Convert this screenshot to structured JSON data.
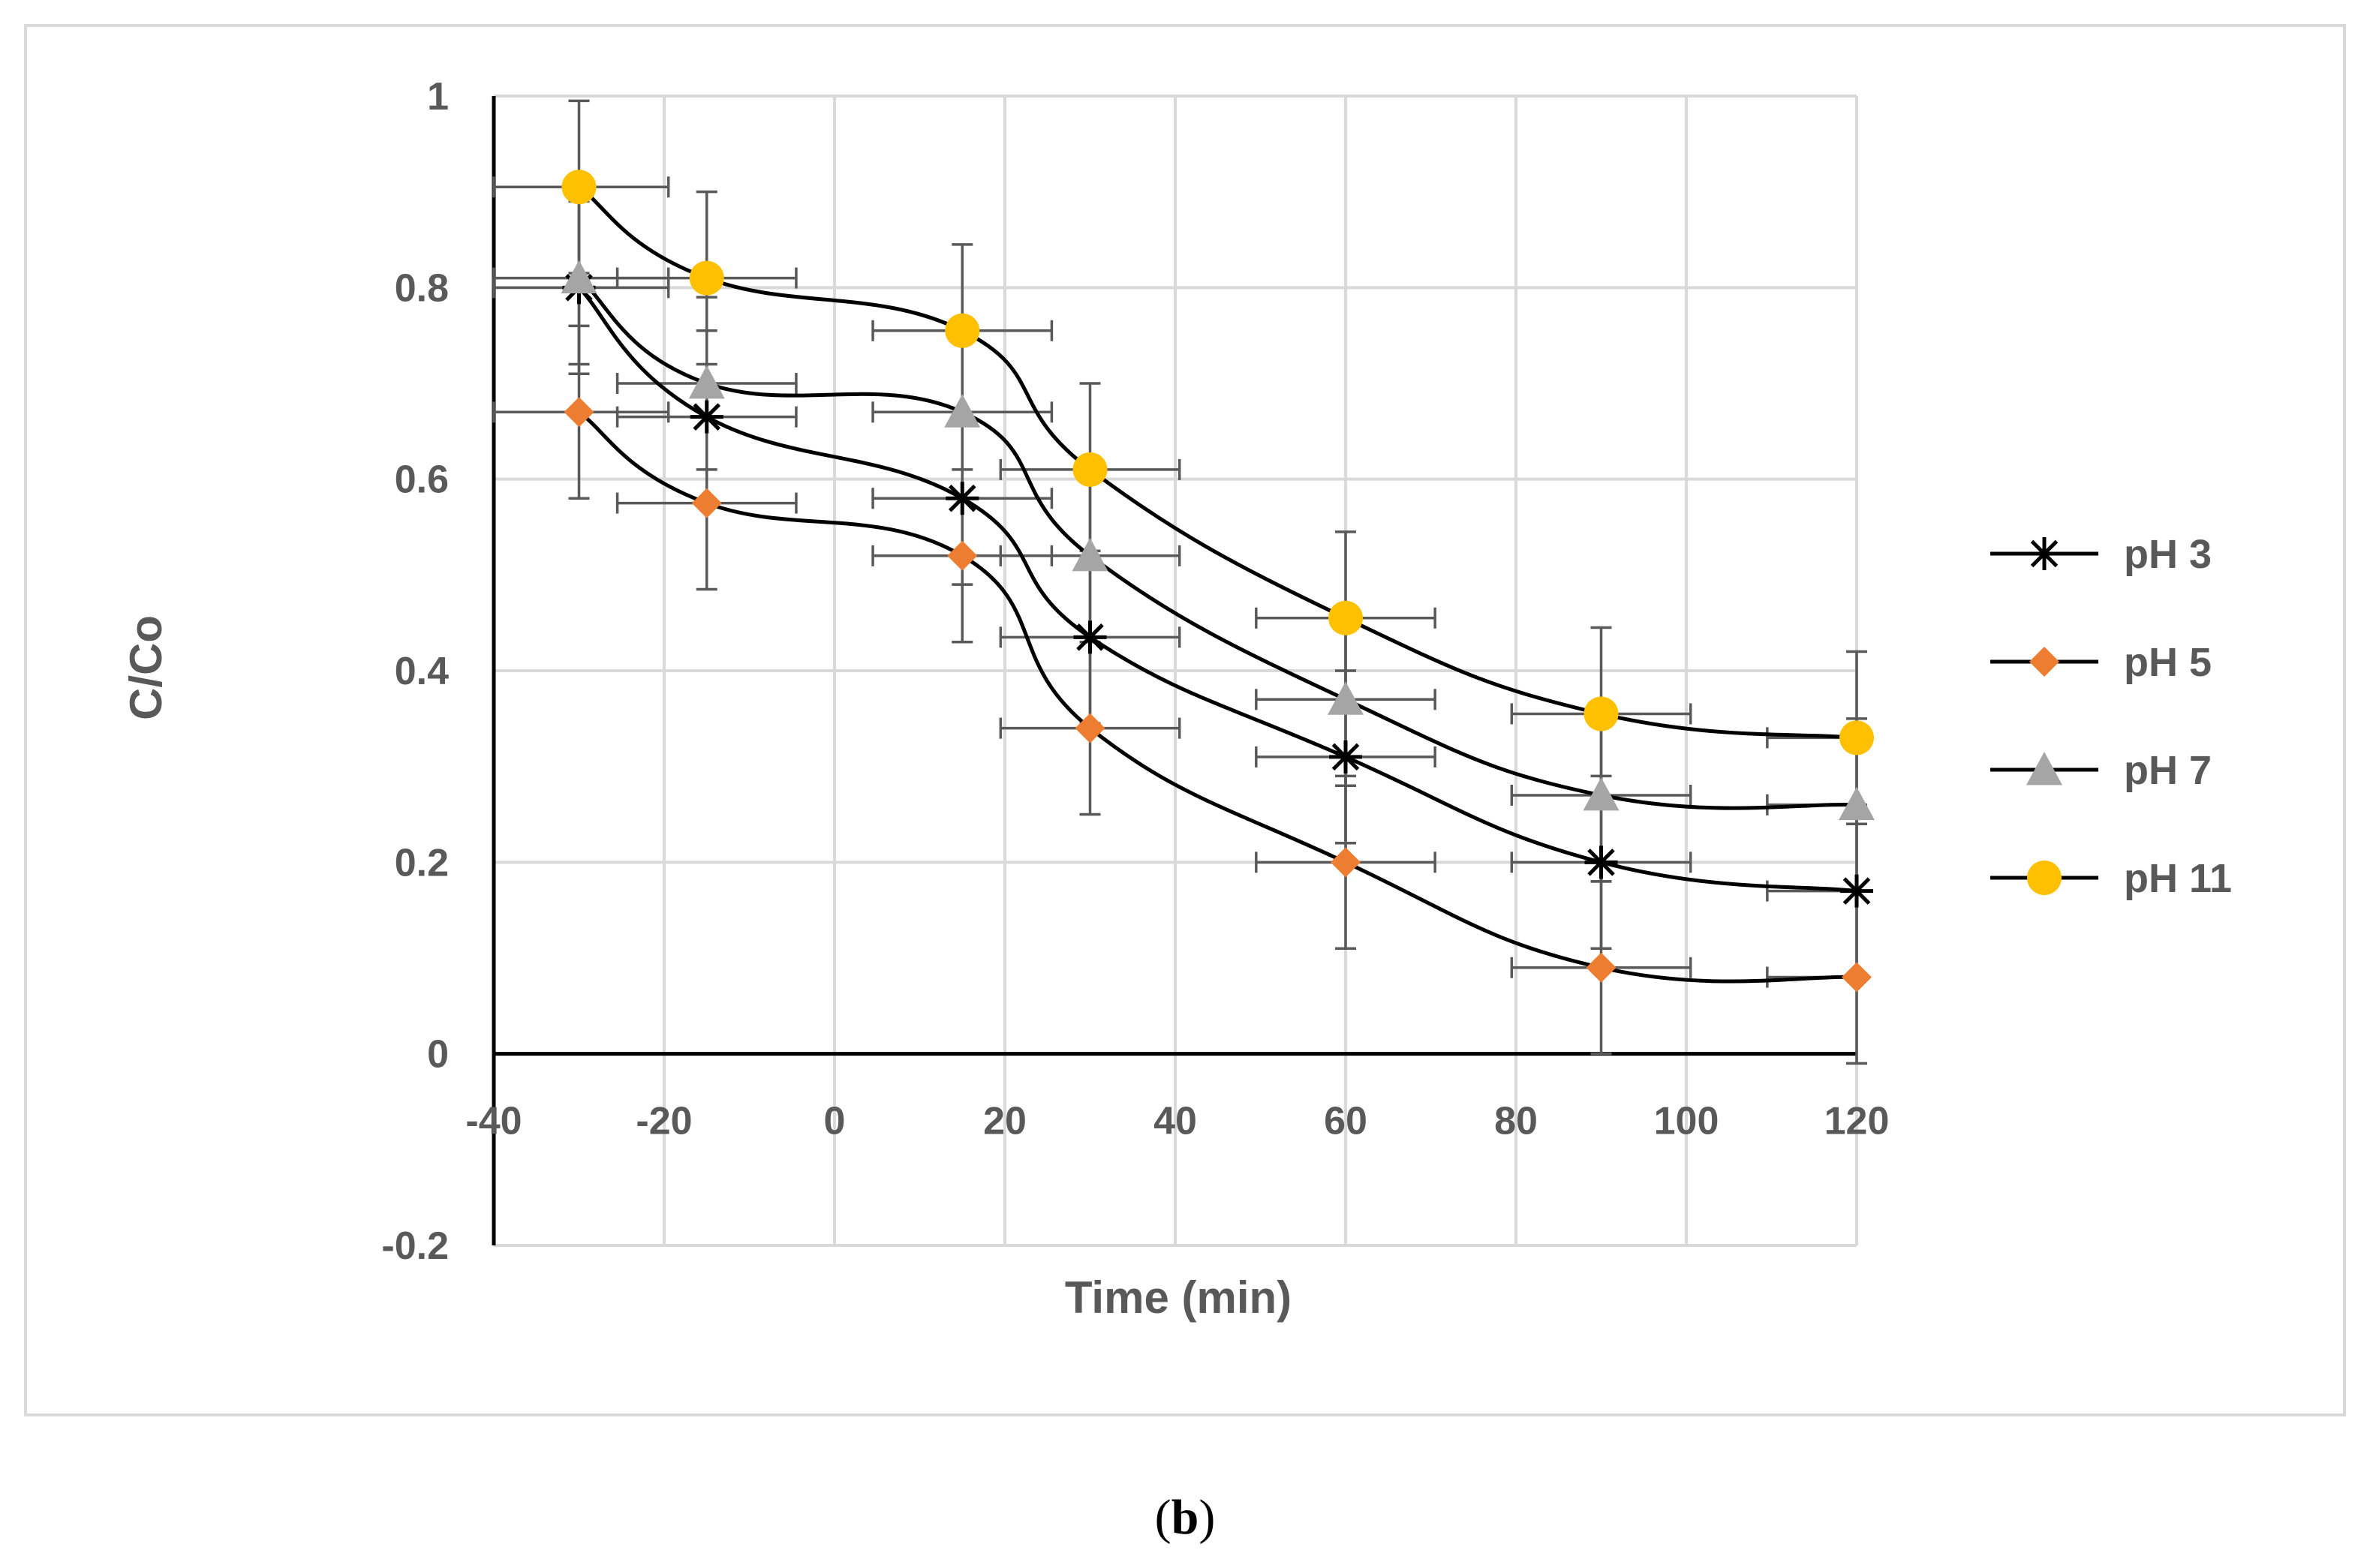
{
  "chart_data": {
    "type": "line",
    "smooth": true,
    "error_bars": "x and y",
    "title": "",
    "xlabel": "Time (min)",
    "ylabel": "C/Co",
    "xlim": [
      -40,
      120
    ],
    "ylim": [
      -0.2,
      1
    ],
    "x_ticks": [
      -40,
      -20,
      0,
      20,
      40,
      60,
      80,
      100,
      120
    ],
    "x_tick_labels": [
      "-40",
      "-20",
      "0",
      "20",
      "40",
      "60",
      "80",
      "100",
      "120"
    ],
    "y_ticks": [
      -0.2,
      0,
      0.2,
      0.4,
      0.6,
      0.8,
      1
    ],
    "y_tick_labels": [
      "-0.2",
      "0",
      "0.2",
      "0.4",
      "0.6",
      "0.8",
      "1"
    ],
    "grid": true,
    "legend_position": "right",
    "x": [
      -30,
      -15,
      15,
      30,
      60,
      90,
      120
    ],
    "x_error": 10.5,
    "y_error": 0.09,
    "series": [
      {
        "name": "pH 3",
        "marker": "star",
        "color": "#000000",
        "values": [
          0.8,
          0.665,
          0.58,
          0.435,
          0.31,
          0.2,
          0.17
        ]
      },
      {
        "name": "pH 5",
        "marker": "diamond",
        "color": "#ed7d31",
        "values": [
          0.67,
          0.575,
          0.52,
          0.34,
          0.2,
          0.09,
          0.08
        ]
      },
      {
        "name": "pH 7",
        "marker": "triangle",
        "color": "#a5a5a5",
        "values": [
          0.81,
          0.7,
          0.67,
          0.52,
          0.37,
          0.27,
          0.26
        ]
      },
      {
        "name": "pH 11",
        "marker": "circle",
        "color": "#ffc000",
        "values": [
          0.905,
          0.81,
          0.755,
          0.61,
          0.455,
          0.355,
          0.33
        ]
      }
    ]
  },
  "caption": {
    "label": "b"
  }
}
